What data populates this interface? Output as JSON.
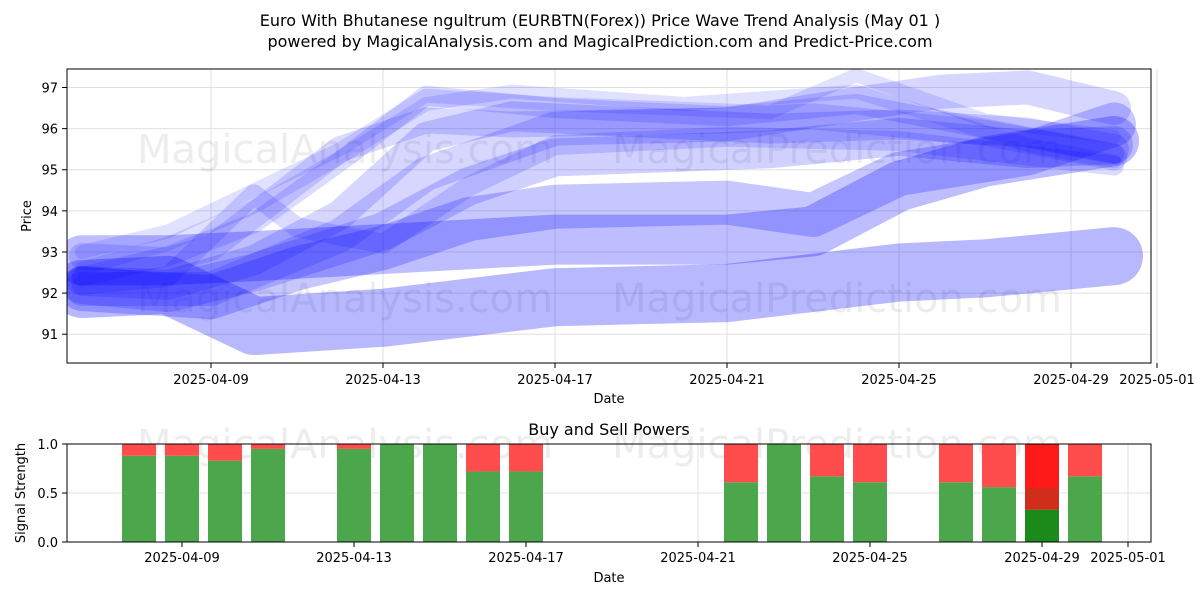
{
  "header": {
    "title": "Euro With Bhutanese ngultrum (EURBTN(Forex)) Price Wave Trend Analysis (May 01 )",
    "subtitle": "powered by MagicalAnalysis.com and MagicalPrediction.com and Predict-Price.com"
  },
  "watermarks": [
    "MagicalAnalysis.com",
    "MagicalPrediction.com"
  ],
  "colors": {
    "wave": "#0000ff",
    "buy": "#4ca64c",
    "sell": "#ff4c4c",
    "buy_highlight": "#1a8a1a",
    "sell_highlight": "#ff1a1a"
  },
  "chart_data": [
    {
      "type": "area",
      "xlabel": "Date",
      "ylabel": "Price",
      "xlim": [
        "2025-04-05",
        "2025-05-01"
      ],
      "ylim": [
        90.3,
        97.45
      ],
      "xticks": [
        "2025-04-09",
        "2025-04-13",
        "2025-04-17",
        "2025-04-21",
        "2025-04-25",
        "2025-04-29",
        "2025-05-01"
      ],
      "yticks": [
        91,
        92,
        93,
        94,
        95,
        96,
        97
      ],
      "grid": true,
      "series": [
        {
          "alpha": 0.12,
          "width": 14,
          "points": [
            [
              "2025-04-06",
              93.0
            ],
            [
              "2025-04-08",
              93.5
            ],
            [
              "2025-04-10",
              94.5
            ],
            [
              "2025-04-12",
              95.5
            ],
            [
              "2025-04-14",
              96.8
            ],
            [
              "2025-04-17",
              96.6
            ],
            [
              "2025-04-22",
              96.4
            ],
            [
              "2025-04-24",
              97.3
            ],
            [
              "2025-04-27",
              96.2
            ],
            [
              "2025-04-30",
              95.8
            ]
          ]
        },
        {
          "alpha": 0.12,
          "width": 14,
          "points": [
            [
              "2025-04-06",
              92.6
            ],
            [
              "2025-04-08",
              93.2
            ],
            [
              "2025-04-10",
              94.1
            ],
            [
              "2025-04-12",
              95.3
            ],
            [
              "2025-04-14",
              96.6
            ],
            [
              "2025-04-16",
              96.9
            ],
            [
              "2025-04-20",
              96.6
            ],
            [
              "2025-04-24",
              96.9
            ],
            [
              "2025-04-28",
              95.6
            ],
            [
              "2025-04-30",
              95.2
            ]
          ]
        },
        {
          "alpha": 0.14,
          "width": 20,
          "points": [
            [
              "2025-04-06",
              92.4
            ],
            [
              "2025-04-08",
              92.9
            ],
            [
              "2025-04-10",
              93.7
            ],
            [
              "2025-04-12",
              95.2
            ],
            [
              "2025-04-14",
              96.8
            ],
            [
              "2025-04-17",
              96.5
            ],
            [
              "2025-04-21",
              96.3
            ],
            [
              "2025-04-24",
              96.6
            ],
            [
              "2025-04-28",
              95.8
            ],
            [
              "2025-04-30",
              95.4
            ]
          ]
        },
        {
          "alpha": 0.14,
          "width": 20,
          "points": [
            [
              "2025-04-06",
              92.2
            ],
            [
              "2025-04-08",
              92.4
            ],
            [
              "2025-04-10",
              94.4
            ],
            [
              "2025-04-11",
              93.6
            ],
            [
              "2025-04-13",
              93.2
            ],
            [
              "2025-04-15",
              94.6
            ],
            [
              "2025-04-17",
              95.6
            ],
            [
              "2025-04-21",
              95.8
            ],
            [
              "2025-04-25",
              95.7
            ],
            [
              "2025-04-30",
              95.1
            ]
          ]
        },
        {
          "alpha": 0.14,
          "width": 26,
          "points": [
            [
              "2025-04-06",
              92.9
            ],
            [
              "2025-04-08",
              92.8
            ],
            [
              "2025-04-09",
              93.1
            ],
            [
              "2025-04-12",
              95.5
            ],
            [
              "2025-04-14",
              96.2
            ],
            [
              "2025-04-16",
              96.1
            ],
            [
              "2025-04-21",
              96.2
            ],
            [
              "2025-04-23",
              96.3
            ],
            [
              "2025-04-27",
              95.9
            ],
            [
              "2025-04-30",
              95.3
            ]
          ]
        },
        {
          "alpha": 0.16,
          "width": 30,
          "points": [
            [
              "2025-04-06",
              92.3
            ],
            [
              "2025-04-08",
              92.2
            ],
            [
              "2025-04-10",
              92.8
            ],
            [
              "2025-04-12",
              93.9
            ],
            [
              "2025-04-14",
              95.8
            ],
            [
              "2025-04-16",
              96.3
            ],
            [
              "2025-04-22",
              96.0
            ],
            [
              "2025-04-25",
              96.1
            ],
            [
              "2025-04-28",
              95.9
            ],
            [
              "2025-04-30",
              95.5
            ]
          ]
        },
        {
          "alpha": 0.16,
          "width": 34,
          "points": [
            [
              "2025-04-06",
              92.1
            ],
            [
              "2025-04-09",
              92.1
            ],
            [
              "2025-04-12",
              93.4
            ],
            [
              "2025-04-14",
              94.9
            ],
            [
              "2025-04-17",
              96.0
            ],
            [
              "2025-04-21",
              96.1
            ],
            [
              "2025-04-24",
              96.6
            ],
            [
              "2025-04-26",
              96.9
            ],
            [
              "2025-04-28",
              97.0
            ],
            [
              "2025-04-30",
              96.5
            ]
          ]
        },
        {
          "alpha": 0.18,
          "width": 38,
          "points": [
            [
              "2025-04-06",
              92.2
            ],
            [
              "2025-04-08",
              92.0
            ],
            [
              "2025-04-10",
              92.5
            ],
            [
              "2025-04-13",
              93.5
            ],
            [
              "2025-04-15",
              94.6
            ],
            [
              "2025-04-17",
              95.3
            ],
            [
              "2025-04-22",
              95.5
            ],
            [
              "2025-04-25",
              95.8
            ],
            [
              "2025-04-28",
              95.5
            ],
            [
              "2025-04-30",
              95.6
            ]
          ]
        },
        {
          "alpha": 0.22,
          "width": 44,
          "points": [
            [
              "2025-04-06",
              92.1
            ],
            [
              "2025-04-09",
              91.9
            ],
            [
              "2025-04-11",
              92.6
            ],
            [
              "2025-04-13",
              93.1
            ],
            [
              "2025-04-15",
              93.8
            ],
            [
              "2025-04-17",
              94.1
            ],
            [
              "2025-04-21",
              94.2
            ],
            [
              "2025-04-23",
              93.9
            ],
            [
              "2025-04-25",
              94.9
            ],
            [
              "2025-04-28",
              95.4
            ],
            [
              "2025-04-30",
              96.1
            ]
          ]
        },
        {
          "alpha": 0.26,
          "width": 50,
          "points": [
            [
              "2025-04-06",
              92.8
            ],
            [
              "2025-04-08",
              92.8
            ],
            [
              "2025-04-10",
              92.9
            ],
            [
              "2025-04-17",
              93.3
            ],
            [
              "2025-04-21",
              93.3
            ],
            [
              "2025-04-23",
              93.5
            ],
            [
              "2025-04-25",
              94.6
            ],
            [
              "2025-04-27",
              95.2
            ],
            [
              "2025-04-30",
              95.7
            ]
          ]
        },
        {
          "alpha": 0.28,
          "width": 58,
          "points": [
            [
              "2025-04-06",
              92.1
            ],
            [
              "2025-04-08",
              92.2
            ],
            [
              "2025-04-10",
              91.2
            ],
            [
              "2025-04-13",
              91.4
            ],
            [
              "2025-04-17",
              91.9
            ],
            [
              "2025-04-21",
              92.0
            ],
            [
              "2025-04-25",
              92.5
            ],
            [
              "2025-04-27",
              92.6
            ],
            [
              "2025-04-30",
              92.9
            ]
          ]
        }
      ]
    },
    {
      "type": "bar",
      "title": "Buy and Sell Powers",
      "xlabel": "Date",
      "ylabel": "Signal Strength",
      "ylim": [
        0,
        1
      ],
      "yticks": [
        "0.0",
        "0.5",
        "1.0"
      ],
      "xticks": [
        "2025-04-09",
        "2025-04-13",
        "2025-04-17",
        "2025-04-21",
        "2025-04-25",
        "2025-04-29",
        "2025-05-01"
      ],
      "categories": [
        "2025-04-08",
        "2025-04-09",
        "2025-04-10",
        "2025-04-11",
        "2025-04-13",
        "2025-04-14",
        "2025-04-15",
        "2025-04-16",
        "2025-04-17",
        "2025-04-22",
        "2025-04-23",
        "2025-04-24",
        "2025-04-25",
        "2025-04-27",
        "2025-04-28",
        "2025-04-29",
        "2025-04-30"
      ],
      "series": [
        {
          "name": "Buy",
          "values": [
            0.88,
            0.88,
            0.83,
            0.95,
            0.95,
            1.0,
            1.0,
            0.72,
            0.72,
            0.61,
            1.0,
            0.67,
            0.61,
            0.61,
            0.56,
            0.33,
            0.67
          ]
        },
        {
          "name": "Sell",
          "values": [
            0.12,
            0.12,
            0.17,
            0.05,
            0.05,
            0.0,
            0.0,
            0.28,
            0.28,
            0.39,
            0.0,
            0.33,
            0.39,
            0.39,
            0.44,
            0.67,
            0.33
          ]
        }
      ],
      "highlight": "2025-04-29"
    }
  ]
}
